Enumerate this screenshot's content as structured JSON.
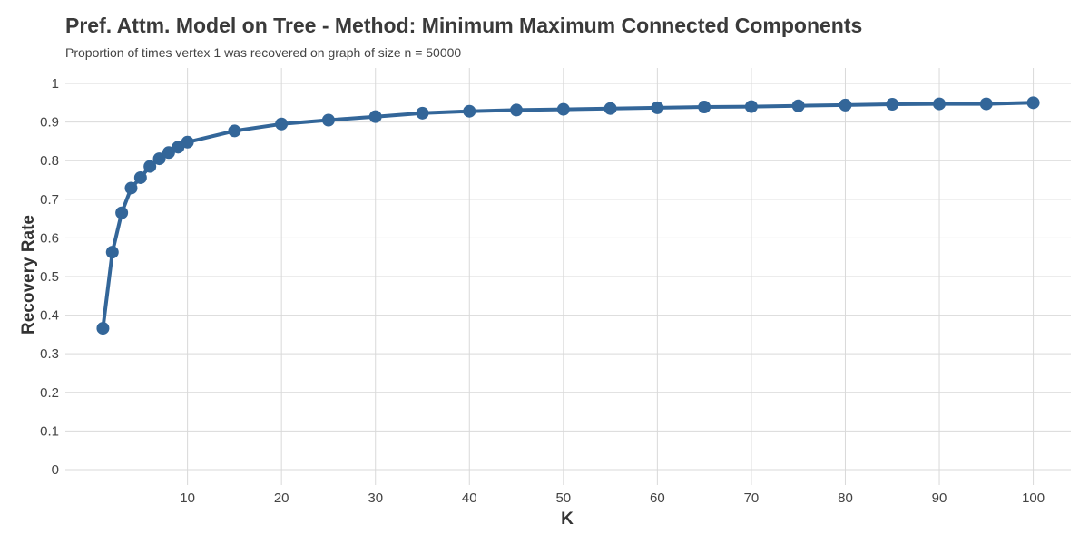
{
  "chart_data": {
    "type": "line",
    "title": "Pref. Attm. Model on Tree - Method: Minimum Maximum Connected Components",
    "subtitle": "Proportion of times vertex 1 was recovered on graph of size n = 50000",
    "xlabel": "K",
    "ylabel": "Recovery Rate",
    "xlim": [
      -3,
      104
    ],
    "ylim": [
      -0.04,
      1.04
    ],
    "x_ticks": [
      10,
      20,
      30,
      40,
      50,
      60,
      70,
      80,
      90,
      100
    ],
    "y_ticks": [
      0,
      0.1,
      0.2,
      0.3,
      0.4,
      0.5,
      0.6,
      0.7,
      0.8,
      0.9,
      1
    ],
    "y_tick_labels": [
      "0",
      "0.1",
      "0.2",
      "0.3",
      "0.4",
      "0.5",
      "0.6",
      "0.7",
      "0.8",
      "0.9",
      "1"
    ],
    "grid": true,
    "legend": "none",
    "series_color": "#336699",
    "x": [
      1,
      2,
      3,
      4,
      5,
      6,
      7,
      8,
      9,
      10,
      15,
      20,
      25,
      30,
      35,
      40,
      45,
      50,
      55,
      60,
      65,
      70,
      75,
      80,
      85,
      90,
      95,
      100
    ],
    "y": [
      0.366,
      0.563,
      0.665,
      0.729,
      0.756,
      0.785,
      0.805,
      0.821,
      0.835,
      0.848,
      0.877,
      0.895,
      0.905,
      0.914,
      0.923,
      0.928,
      0.931,
      0.933,
      0.935,
      0.937,
      0.939,
      0.94,
      0.942,
      0.944,
      0.946,
      0.947,
      0.947,
      0.95
    ]
  }
}
